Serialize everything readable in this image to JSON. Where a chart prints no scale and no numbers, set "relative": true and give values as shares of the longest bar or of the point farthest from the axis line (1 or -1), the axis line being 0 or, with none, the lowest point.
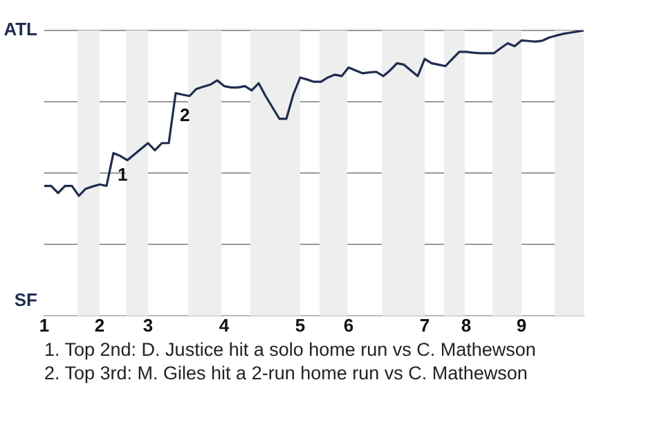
{
  "chart_data": {
    "type": "line",
    "relative": true,
    "categories": [
      "1",
      null,
      null,
      null,
      null,
      null,
      null,
      null,
      "2",
      null,
      null,
      null,
      null,
      null,
      null,
      "3",
      null,
      null,
      null,
      null,
      null,
      null,
      null,
      null,
      null,
      null,
      "4",
      null,
      null,
      null,
      null,
      null,
      null,
      null,
      null,
      null,
      null,
      "5",
      null,
      null,
      null,
      null,
      null,
      null,
      "6",
      null,
      null,
      null,
      null,
      null,
      null,
      null,
      null,
      null,
      null,
      "7",
      null,
      null,
      null,
      null,
      null,
      "8",
      null,
      null,
      null,
      null,
      null,
      null,
      null,
      "9",
      null,
      null,
      null,
      null,
      null,
      null,
      null,
      null,
      null
    ],
    "series": [
      {
        "color": "#1f2d4e",
        "values": [
          0.455,
          0.455,
          0.43,
          0.455,
          0.455,
          0.42,
          0.445,
          0.453,
          0.46,
          0.455,
          0.57,
          0.56,
          0.545,
          0.565,
          0.585,
          0.605,
          0.58,
          0.605,
          0.605,
          0.78,
          0.775,
          0.77,
          0.795,
          0.803,
          0.81,
          0.825,
          0.805,
          0.8,
          0.8,
          0.805,
          0.79,
          0.815,
          0.77,
          0.73,
          0.69,
          0.69,
          0.775,
          0.835,
          0.828,
          0.82,
          0.82,
          0.835,
          0.845,
          0.84,
          0.87,
          0.86,
          0.85,
          0.853,
          0.855,
          0.84,
          0.86,
          0.885,
          0.88,
          0.86,
          0.84,
          0.9,
          0.885,
          0.88,
          0.875,
          0.9,
          0.925,
          0.925,
          0.922,
          0.92,
          0.92,
          0.92,
          0.938,
          0.955,
          0.945,
          0.965,
          0.963,
          0.961,
          0.964,
          0.975,
          0.982,
          0.988,
          0.992,
          0.996,
          1
        ]
      }
    ],
    "grid": "y",
    "legend": false,
    "marker": "none",
    "line_style": "solid",
    "annotations": [
      "ATL",
      "SF",
      {
        "text": "1",
        "y": 0.57
      },
      {
        "text": "2",
        "y": 0.78
      },
      "1. Top 2nd: D. Justice hit a solo home run vs C. Mathewson",
      "2. Top 3rd: M. Giles hit a 2-run home run vs C. Mathewson"
    ]
  }
}
